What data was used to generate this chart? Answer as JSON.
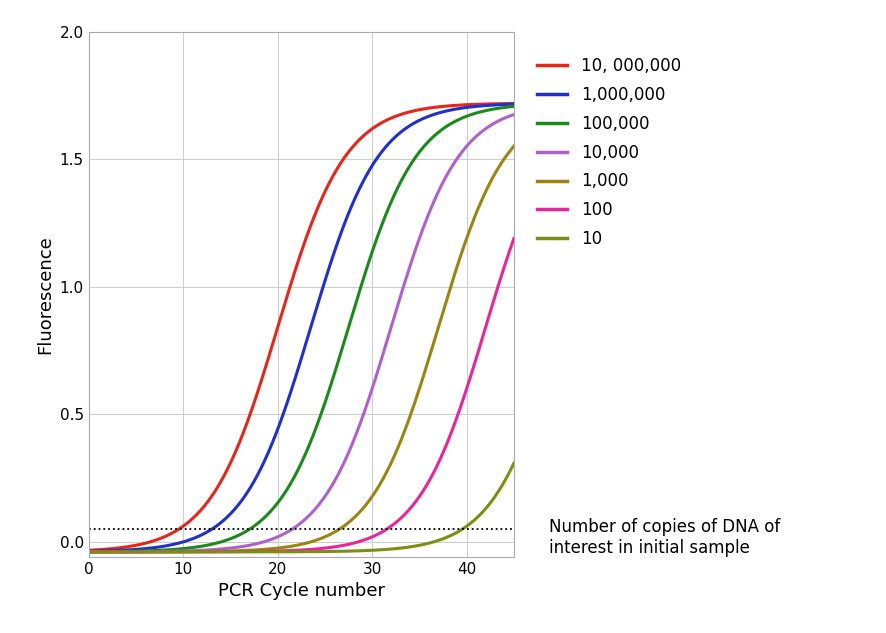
{
  "series": [
    {
      "label": "10, 000,000",
      "color": "#e8251a",
      "midpoint": 20.0,
      "steepness": 0.28
    },
    {
      "label": "1,000,000",
      "color": "#2030cc",
      "midpoint": 23.5,
      "steepness": 0.28
    },
    {
      "label": "100,000",
      "color": "#1a8a1a",
      "midpoint": 27.5,
      "steepness": 0.28
    },
    {
      "label": "10,000",
      "color": "#b060cc",
      "midpoint": 32.0,
      "steepness": 0.28
    },
    {
      "label": "1,000",
      "color": "#9a8510",
      "midpoint": 37.0,
      "steepness": 0.28
    },
    {
      "label": "100",
      "color": "#e8259a",
      "midpoint": 42.0,
      "steepness": 0.28
    },
    {
      "label": "10",
      "color": "#7a9010",
      "midpoint": 50.0,
      "steepness": 0.28
    }
  ],
  "x_min": 0,
  "x_max": 45,
  "y_min": -0.06,
  "y_max": 2.0,
  "y_plateau": 1.72,
  "y_baseline": -0.04,
  "threshold_y": 0.05,
  "xlabel": "PCR Cycle number",
  "ylabel": "Fluorescence",
  "x_ticks": [
    0,
    10,
    20,
    30,
    40
  ],
  "y_ticks": [
    0,
    0.5,
    1,
    1.5,
    2
  ],
  "legend_entries": [
    "10, 000,000",
    "1,000,000",
    "100,000",
    "10,000",
    "1,000",
    "100",
    "10"
  ],
  "legend_note": "Number of copies of DNA of\ninterest in initial sample",
  "background_color": "#ffffff",
  "grid_color": "#cccccc",
  "fig_width": 8.86,
  "fig_height": 6.33
}
